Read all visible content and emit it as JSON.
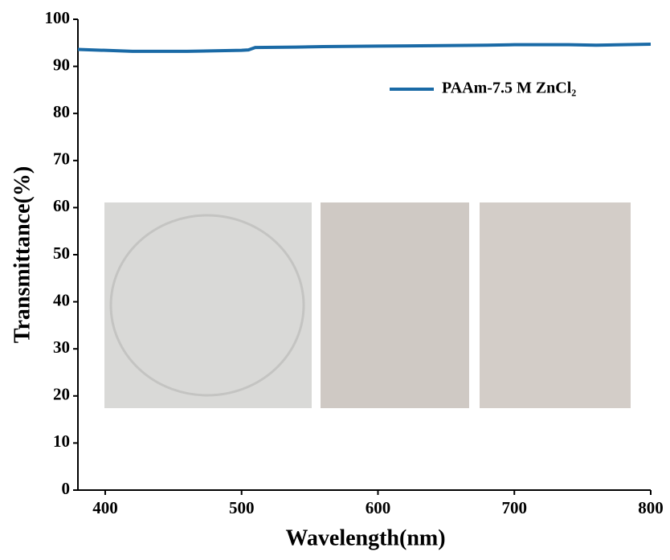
{
  "chart_data": {
    "type": "line",
    "x_label": "Wavelength(nm)",
    "y_label": "Transmittance(%)",
    "x": [
      380,
      400,
      420,
      440,
      460,
      480,
      500,
      505,
      510,
      540,
      560,
      600,
      640,
      680,
      700,
      740,
      760,
      800
    ],
    "series": [
      {
        "name": "PAAm-7.5 M ZnCl₂",
        "color": "#1a6aa6",
        "values": [
          93.6,
          93.4,
          93.2,
          93.2,
          93.2,
          93.3,
          93.4,
          93.5,
          94.0,
          94.1,
          94.2,
          94.3,
          94.4,
          94.5,
          94.6,
          94.6,
          94.5,
          94.7
        ]
      }
    ],
    "xlim": [
      380,
      800
    ],
    "xticks": [
      400,
      500,
      600,
      700,
      800
    ],
    "ylim": [
      0,
      100
    ],
    "yticks": [
      0,
      10,
      20,
      30,
      40,
      50,
      60,
      70,
      80,
      90,
      100
    ],
    "legend": "upper right",
    "grid": false
  }
}
